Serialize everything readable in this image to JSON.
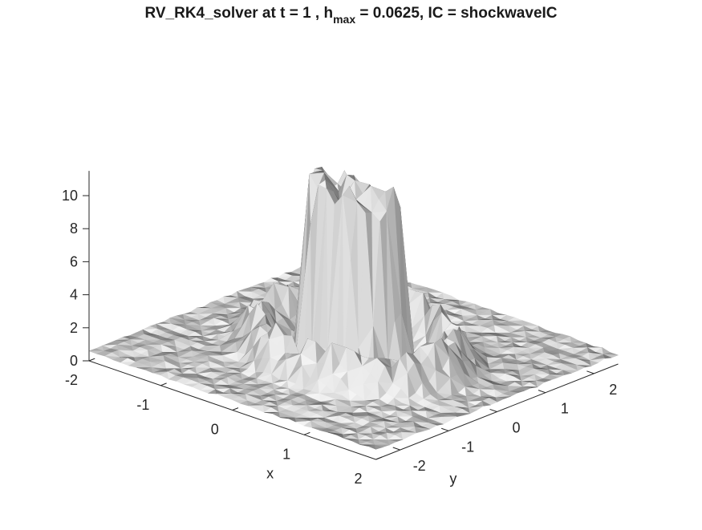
{
  "chart_data": {
    "type": "surface",
    "title": {
      "pre": "RV_RK4_solver at t = 1 , h",
      "sub": "max",
      "post": " = 0.0625, IC = shockwaveIC"
    },
    "xlabel": "x",
    "ylabel": "y",
    "zlabel": "",
    "xlim": [
      -2,
      2
    ],
    "ylim": [
      -2.5,
      2.5
    ],
    "zlim": [
      0,
      11.5
    ],
    "x_ticks": [
      -2,
      -1,
      0,
      1,
      2
    ],
    "y_ticks": [
      -2,
      -1,
      0,
      1,
      2
    ],
    "z_ticks": [
      0,
      2,
      4,
      6,
      8,
      10
    ],
    "colormap": "gray",
    "shading": "faceted",
    "surface": {
      "description_function": "cylindrical shockwave: plateau near 10-11 for r<0.6 with a raised shelf ~8 on the +y side, ringed by a wave crest ~2-3 at r≈1.1, base ~0.6",
      "base_level": 0.6,
      "plateau_radius": 0.6,
      "plateau_level": 10.8,
      "ring_radius": 1.15,
      "ring_level": 2.6
    },
    "grid": false,
    "legend": "none"
  }
}
